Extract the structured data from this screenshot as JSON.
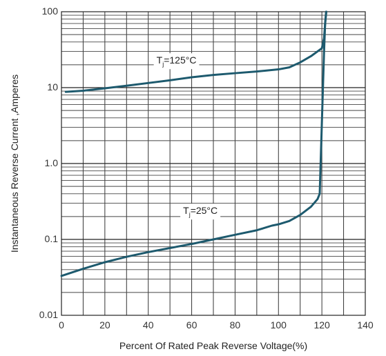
{
  "chart_data": {
    "type": "line",
    "xlabel": "Percent Of Rated Peak Reverse Voltage(%)",
    "ylabel": "Instantaneous Reverse Current ,Amperes",
    "xlim": [
      0,
      140
    ],
    "ylim": [
      0.01,
      100
    ],
    "yscale": "log",
    "grid": true,
    "xticks": [
      0,
      20,
      40,
      60,
      80,
      100,
      120,
      140
    ],
    "xtick_labels": [
      "0",
      "20",
      "40",
      "60",
      "80",
      "100",
      "120",
      "140"
    ],
    "yticks": [
      0.01,
      0.1,
      1.0,
      10,
      100
    ],
    "ytick_labels": [
      "0.01",
      "0.1",
      "1.0",
      "10",
      "100"
    ],
    "line_color": "#1d5a6e",
    "series": [
      {
        "name": "Tj=125°C",
        "label_main": "T",
        "label_sub": "j",
        "label_rest": "=125°C",
        "label_at": [
          53,
          23
        ],
        "x": [
          2,
          10,
          20,
          30,
          40,
          50,
          60,
          70,
          80,
          90,
          100,
          105,
          110,
          115,
          120,
          121,
          121.5,
          122
        ],
        "y": [
          8.8,
          9.1,
          9.8,
          10.6,
          11.5,
          12.5,
          13.7,
          14.7,
          15.5,
          16.3,
          17.4,
          18.5,
          21.5,
          26,
          33,
          45,
          70,
          100
        ]
      },
      {
        "name": "Tj=25°C",
        "label_main": "T",
        "label_sub": "j",
        "label_rest": "=25°C",
        "label_at": [
          64,
          0.24
        ],
        "x": [
          0,
          10,
          20,
          30,
          40,
          50,
          60,
          70,
          80,
          90,
          97,
          100,
          105,
          110,
          115,
          118,
          119,
          120,
          121,
          121.5,
          122
        ],
        "y": [
          0.033,
          0.041,
          0.05,
          0.059,
          0.068,
          0.077,
          0.087,
          0.1,
          0.115,
          0.132,
          0.152,
          0.158,
          0.175,
          0.21,
          0.27,
          0.34,
          0.4,
          3.5,
          30,
          70,
          100
        ]
      }
    ]
  }
}
